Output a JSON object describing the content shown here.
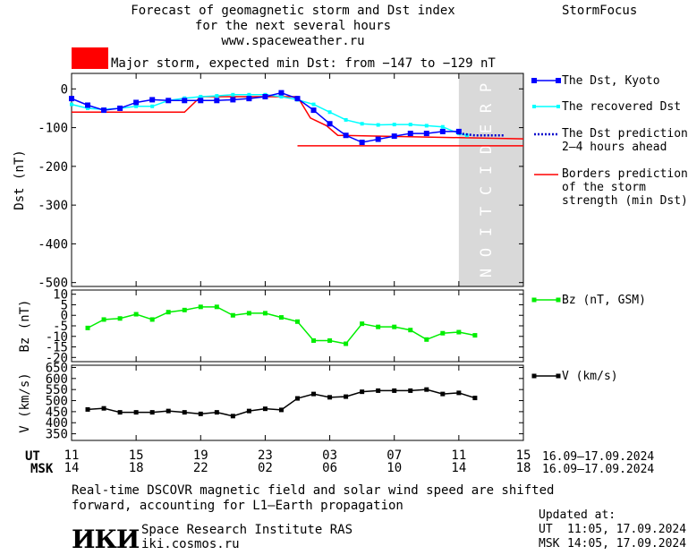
{
  "header": {
    "title_line1": "Forecast of geomagnetic storm and Dst index",
    "title_line2": "for the next several hours",
    "url": "www.spaceweather.ru",
    "brand": "StormFocus",
    "storm_text": "Major storm, expected min Dst: from −147 to −129 nT",
    "storm_color": "#ff0000"
  },
  "legend": {
    "dst_kyoto": "The Dst, Kyoto",
    "dst_recovered": "The recovered Dst",
    "dst_pred_1": "The Dst prediction",
    "dst_pred_2": "2–4 hours ahead",
    "borders_1": "Borders prediction",
    "borders_2": "of the storm",
    "borders_3": "strength (min Dst)",
    "bz": "Bz (nT, GSM)",
    "v": "V (km/s)"
  },
  "prediction_label": "PREDICTION",
  "time_axis": {
    "ut_label": "UT",
    "msk_label": "MSK",
    "ut_ticks": [
      "11",
      "15",
      "19",
      "23",
      "03",
      "07",
      "11",
      "15"
    ],
    "msk_ticks": [
      "14",
      "18",
      "22",
      "02",
      "06",
      "10",
      "14",
      "18"
    ],
    "date_range": "16.09–17.09.2024"
  },
  "footer": {
    "note_line1": "Real-time DSCOVR magnetic field and solar wind speed are shifted",
    "note_line2": "forward, accounting for L1–Earth propagation",
    "logo": "ИКИ",
    "institute": "Space Research Institute RAS",
    "site": "iki.cosmos.ru",
    "updated_label": "Updated at:",
    "updated_ut_label": "UT",
    "updated_ut": "11:05, 17.09.2024",
    "updated_msk_label": "MSK",
    "updated_msk": "14:05, 17.09.2024"
  },
  "colors": {
    "dst_kyoto": "#0000ff",
    "dst_recovered": "#00ffff",
    "dst_prediction": "#0000cc",
    "borders": "#ff0000",
    "bz": "#00ee00",
    "v": "#000000",
    "prediction_band": "#d9d9d9"
  },
  "chart_data": [
    {
      "type": "line",
      "ylabel": "Dst (nT)",
      "xlabel": "UT",
      "x_unit": "hours since 11 UT, 16.09.2024",
      "xlim": [
        0,
        28
      ],
      "ylim": [
        -510,
        40
      ],
      "yticks": [
        0,
        -100,
        -200,
        -300,
        -400,
        -500
      ],
      "prediction_start": 24,
      "series": [
        {
          "name": "The Dst, Kyoto",
          "x": [
            0,
            1,
            2,
            3,
            4,
            5,
            6,
            7,
            8,
            9,
            10,
            11,
            12,
            13,
            14,
            15,
            16,
            17,
            18,
            19,
            20,
            21,
            22,
            23,
            24
          ],
          "values": [
            -25,
            -42,
            -55,
            -50,
            -35,
            -28,
            -30,
            -30,
            -30,
            -30,
            -28,
            -25,
            -20,
            -10,
            -25,
            -55,
            -90,
            -120,
            -138,
            -130,
            -122,
            -115,
            -115,
            -110,
            -110
          ]
        },
        {
          "name": "The recovered Dst",
          "x": [
            0,
            1,
            2,
            3,
            4,
            5,
            6,
            7,
            8,
            9,
            10,
            11,
            12,
            13,
            14,
            15,
            16,
            17,
            18,
            19,
            20,
            21,
            22,
            23,
            24,
            24.5
          ],
          "values": [
            -40,
            -50,
            -53,
            -50,
            -45,
            -45,
            -30,
            -24,
            -20,
            -18,
            -15,
            -15,
            -15,
            -20,
            -28,
            -40,
            -60,
            -80,
            -90,
            -93,
            -92,
            -92,
            -95,
            -98,
            -115,
            -120
          ]
        },
        {
          "name": "The Dst prediction 2–4 hours ahead",
          "x": [
            24,
            25,
            26.8
          ],
          "values": [
            -115,
            -120,
            -120
          ]
        },
        {
          "name": "Borders prediction of the storm strength (min Dst)",
          "x": [
            0,
            7,
            8,
            14,
            14.8,
            15.8,
            16.5,
            28
          ],
          "values": [
            -60,
            -60,
            -20,
            -20,
            -75,
            -95,
            -120,
            -129
          ]
        },
        {
          "name": "Borders prediction lower",
          "x": [
            14,
            28
          ],
          "values": [
            -147,
            -147
          ]
        }
      ]
    },
    {
      "type": "line",
      "ylabel": "Bz (nT)",
      "xlim": [
        0,
        28
      ],
      "ylim": [
        -22,
        12
      ],
      "yticks": [
        10,
        5,
        0,
        -5,
        -10,
        -15,
        -20
      ],
      "series": [
        {
          "name": "Bz (nT, GSM)",
          "x": [
            1,
            2,
            3,
            4,
            5,
            6,
            7,
            8,
            9,
            10,
            11,
            12,
            13,
            14,
            15,
            16,
            17,
            18,
            19,
            20,
            21,
            22,
            23,
            24,
            25
          ],
          "values": [
            -6,
            -2,
            -1.5,
            0.5,
            -2,
            1.5,
            2.5,
            4,
            4,
            0,
            1,
            1,
            -1,
            -3,
            -12,
            -12,
            -13.5,
            -4,
            -5.5,
            -5.5,
            -7,
            -11.5,
            -8.5,
            -8,
            -9.5
          ]
        }
      ]
    },
    {
      "type": "line",
      "ylabel": "V (km/s)",
      "xlim": [
        0,
        28
      ],
      "ylim": [
        320,
        660
      ],
      "yticks": [
        650,
        600,
        550,
        500,
        450,
        400,
        350
      ],
      "series": [
        {
          "name": "V (km/s)",
          "x": [
            1,
            2,
            3,
            4,
            5,
            6,
            7,
            8,
            9,
            10,
            11,
            12,
            13,
            14,
            15,
            16,
            17,
            18,
            19,
            20,
            21,
            22,
            23,
            24,
            25
          ],
          "values": [
            460,
            465,
            447,
            447,
            447,
            453,
            447,
            440,
            447,
            430,
            453,
            463,
            458,
            510,
            530,
            515,
            518,
            540,
            545,
            545,
            545,
            550,
            530,
            535,
            512
          ]
        }
      ]
    }
  ]
}
